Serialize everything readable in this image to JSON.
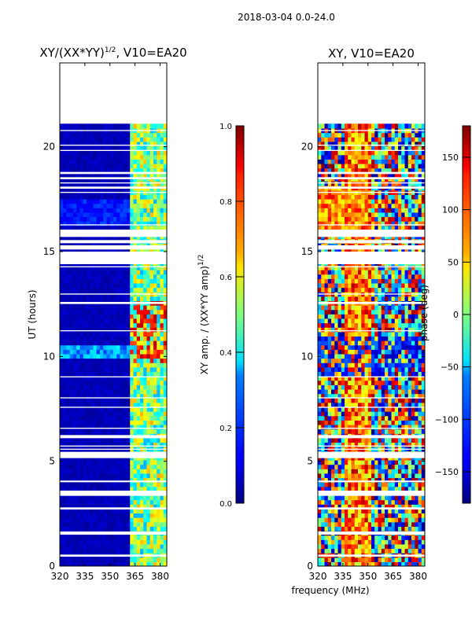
{
  "suptitle": "2018-03-04 0.0-24.0",
  "xlabel_shared": "frequency (MHz)",
  "chart_data": [
    {
      "type": "heatmap",
      "title_main": "XY/(XX*YY)",
      "title_sup": "1/2",
      "title_tail": ", V10=EA20",
      "ylabel": "UT (hours)",
      "xlim": [
        320,
        384
      ],
      "ylim": [
        0,
        24
      ],
      "xticks": [
        320,
        335,
        350,
        365,
        380
      ],
      "xtick_labels": [
        "320",
        "335",
        "350",
        "365",
        "380"
      ],
      "yticks": [
        0,
        5,
        10,
        15,
        20
      ],
      "ytick_labels": [
        "0",
        "5",
        "10",
        "15",
        "20"
      ],
      "colorbar": {
        "label_main": "XY amp. / (XX*YY amp)",
        "label_sup": "1/2",
        "range": [
          0.0,
          1.0
        ],
        "ticks": [
          0.0,
          0.2,
          0.4,
          0.6,
          0.8,
          1.0
        ],
        "tick_labels": [
          "0.0",
          "0.2",
          "0.4",
          "0.6",
          "0.8",
          "1.0"
        ],
        "colormap": "jet"
      },
      "data_extent_ut": [
        0,
        21.1
      ],
      "gap_hours": [
        [
          0.45,
          0.55
        ],
        [
          1.5,
          1.65
        ],
        [
          2.7,
          2.8
        ],
        [
          3.35,
          3.6
        ],
        [
          4.0,
          4.08
        ],
        [
          5.15,
          5.45
        ],
        [
          5.55,
          5.6
        ],
        [
          5.7,
          5.75
        ],
        [
          6.1,
          6.25
        ],
        [
          6.55,
          6.6
        ],
        [
          7.55,
          7.6
        ],
        [
          8.0,
          8.05
        ],
        [
          9.0,
          9.05
        ],
        [
          11.2,
          11.25
        ],
        [
          12.5,
          12.6
        ],
        [
          12.95,
          13.0
        ],
        [
          14.25,
          14.3
        ],
        [
          14.4,
          15.0
        ],
        [
          15.1,
          15.3
        ],
        [
          15.4,
          15.55
        ],
        [
          15.7,
          16.05
        ],
        [
          16.25,
          16.3
        ],
        [
          17.8,
          17.85
        ],
        [
          18.0,
          18.1
        ],
        [
          18.25,
          18.3
        ],
        [
          18.45,
          18.55
        ],
        [
          18.7,
          18.8
        ],
        [
          19.8,
          19.85
        ],
        [
          20.05,
          20.1
        ],
        [
          20.75,
          20.8
        ]
      ]
    },
    {
      "type": "heatmap",
      "title": "XY, V10=EA20",
      "xlim": [
        320,
        384
      ],
      "ylim": [
        0,
        24
      ],
      "xticks": [
        320,
        335,
        350,
        365,
        380
      ],
      "xtick_labels": [
        "320",
        "335",
        "350",
        "365",
        "380"
      ],
      "yticks": [
        0,
        5,
        10,
        15,
        20
      ],
      "ytick_labels": [
        "0",
        "5",
        "10",
        "15",
        "20"
      ],
      "colorbar": {
        "label": "phase (deg)",
        "range": [
          -180,
          180
        ],
        "ticks": [
          -150,
          -100,
          -50,
          0,
          50,
          100,
          150
        ],
        "tick_labels": [
          "−150",
          "−100",
          "−50",
          "0",
          "50",
          "100",
          "150"
        ],
        "colormap": "jet"
      },
      "data_extent_ut": [
        0,
        21.1
      ],
      "gap_hours": [
        [
          0.45,
          0.55
        ],
        [
          1.5,
          1.65
        ],
        [
          2.7,
          2.8
        ],
        [
          3.35,
          3.6
        ],
        [
          4.0,
          4.08
        ],
        [
          5.15,
          5.45
        ],
        [
          5.55,
          5.6
        ],
        [
          5.7,
          5.75
        ],
        [
          6.1,
          6.25
        ],
        [
          6.55,
          6.6
        ],
        [
          7.55,
          7.6
        ],
        [
          8.0,
          8.05
        ],
        [
          9.0,
          9.05
        ],
        [
          11.2,
          11.25
        ],
        [
          12.5,
          12.6
        ],
        [
          12.95,
          13.0
        ],
        [
          14.25,
          14.3
        ],
        [
          14.4,
          15.0
        ],
        [
          15.1,
          15.3
        ],
        [
          15.4,
          15.55
        ],
        [
          15.7,
          16.05
        ],
        [
          16.25,
          16.3
        ],
        [
          17.8,
          17.85
        ],
        [
          18.0,
          18.1
        ],
        [
          18.25,
          18.3
        ],
        [
          18.45,
          18.55
        ],
        [
          18.7,
          18.8
        ],
        [
          19.8,
          19.85
        ],
        [
          20.05,
          20.1
        ],
        [
          20.75,
          20.8
        ]
      ]
    }
  ]
}
